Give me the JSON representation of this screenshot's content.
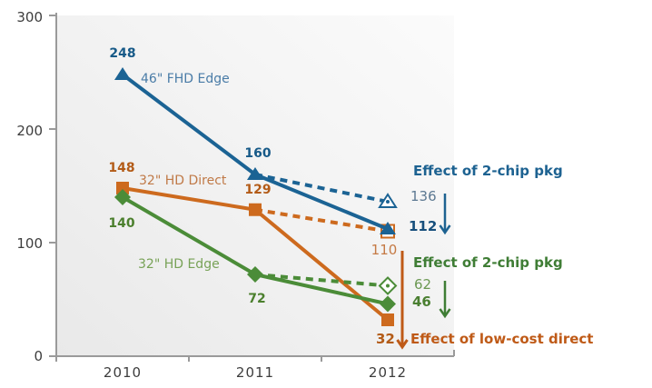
{
  "chart_data": {
    "type": "line",
    "title": "",
    "xlabel": "",
    "ylabel": "",
    "x_labels": [
      "2010",
      "2011",
      "2012"
    ],
    "ylim": [
      0,
      300
    ],
    "yticks": [
      0,
      100,
      200,
      300
    ],
    "grid": false,
    "axis_color": "#9a9a9a",
    "tick_label_color": "#3d3d3d",
    "plot_bg_gradient": [
      "#e9e9e9",
      "#fbfbfb"
    ],
    "series": [
      {
        "name": "46\" FHD Edge",
        "marker": "triangle",
        "line_style": "solid-with-dashed-branch",
        "line_color": "#1b6394",
        "name_label_color": "#4a7ca7",
        "value_label_color": "#175a88",
        "values": [
          248,
          160,
          112
        ],
        "dashed_branch": {
          "from_x": "2011",
          "to_x": "2012",
          "value": 136
        }
      },
      {
        "name": "32\" HD Direct",
        "marker": "square",
        "line_style": "solid-with-dashed-branch",
        "line_color": "#cd6a1e",
        "name_label_color": "#c07a48",
        "value_label_color": "#b35b17",
        "values": [
          148,
          129,
          32
        ],
        "dashed_branch": {
          "from_x": "2011",
          "to_x": "2012",
          "value": 110
        }
      },
      {
        "name": "32\" HD Edge",
        "marker": "diamond",
        "line_style": "solid-with-dashed-branch",
        "line_color": "#4b8c38",
        "name_label_color": "#78a257",
        "value_label_color": "#4b7f2d",
        "values": [
          140,
          72,
          46
        ],
        "dashed_branch": {
          "from_x": "2011",
          "to_x": "2012",
          "value": 62
        }
      }
    ],
    "annotations": [
      {
        "text": "Effect of 2-chip pkg",
        "color": "#1d6291",
        "from_value": 136,
        "from_value_color": "#5d7992",
        "to_value": 112,
        "to_value_color": "#174f7c",
        "arrow": "short-down-arrow"
      },
      {
        "text": "Effect of 2-chip pkg",
        "color": "#3f7d35",
        "from_value": 62,
        "from_value_color": "#6b9852",
        "to_value": 46,
        "to_value_color": "#4a7f31",
        "arrow": "short-down-arrow"
      },
      {
        "text": "Effect of low-cost direct",
        "color": "#bf5a17",
        "from_value": 110,
        "from_value_color": "#c57a45",
        "to_value": 32,
        "to_value_color": "#b35b17",
        "arrow": "long-down-arrow"
      }
    ]
  }
}
